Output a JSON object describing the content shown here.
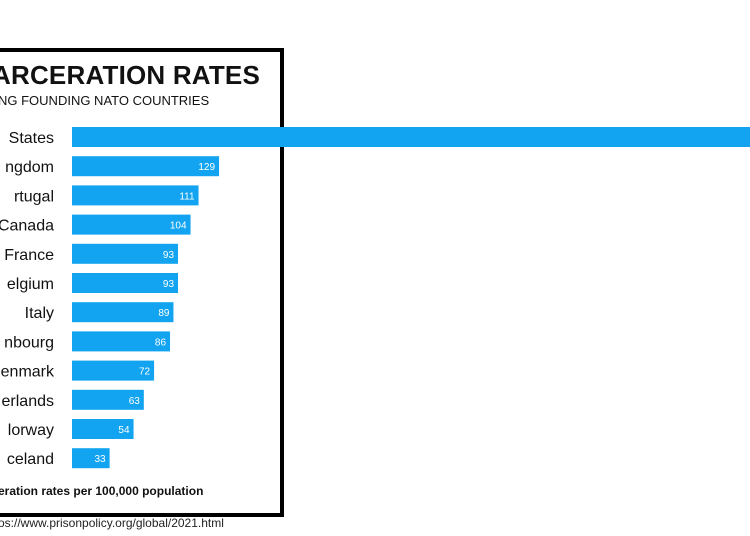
{
  "chart_data": {
    "type": "bar",
    "orientation": "horizontal",
    "title": "ARCERATION RATES",
    "subtitle": "NG FOUNDING NATO COUNTRIES",
    "categories": [
      "States",
      "ngdom",
      "rtugal",
      "Canada",
      "France",
      "elgium",
      "Italy",
      "nbourg",
      "enmark",
      "erlands",
      "lorway",
      "celand"
    ],
    "values": [
      null,
      129,
      111,
      104,
      93,
      93,
      89,
      86,
      72,
      63,
      54,
      33
    ],
    "value_labels": [
      "",
      "129",
      "111",
      "104",
      "93",
      "93",
      "89",
      "86",
      "72",
      "63",
      "54",
      "33"
    ],
    "bar_color": "#12a4f0",
    "caption": "eration rates per 100,000 population",
    "source": "os://www.prisonpolicy.org/global/2021.html"
  }
}
